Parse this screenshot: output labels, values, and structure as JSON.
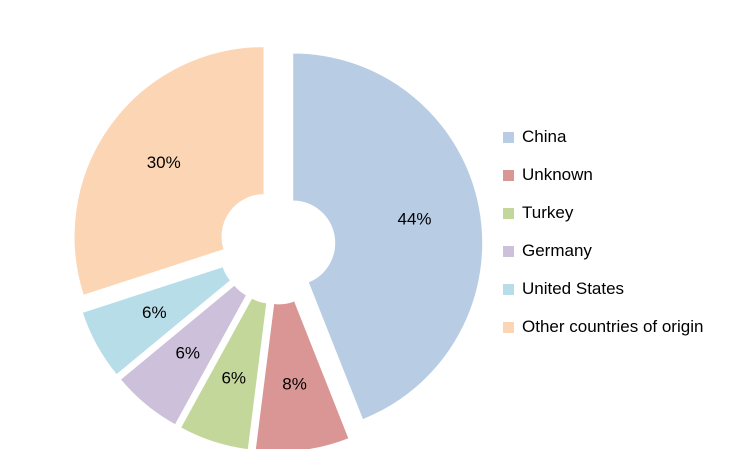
{
  "chart_data": {
    "type": "pie",
    "variant": "exploded doughnut",
    "categories": [
      "China",
      "Unknown",
      "Turkey",
      "Germany",
      "United States",
      "Other countries of origin"
    ],
    "values": [
      44,
      8,
      6,
      6,
      6,
      30
    ],
    "data_labels": [
      "44%",
      "8%",
      "6%",
      "6%",
      "6%",
      "30%"
    ],
    "colors": [
      "#B8CCE4",
      "#DA9694",
      "#C4D79B",
      "#CCC0DA",
      "#B7DEE8",
      "#FCD5B4"
    ],
    "legend_position": "right",
    "start_angle": "top, clockwise"
  }
}
